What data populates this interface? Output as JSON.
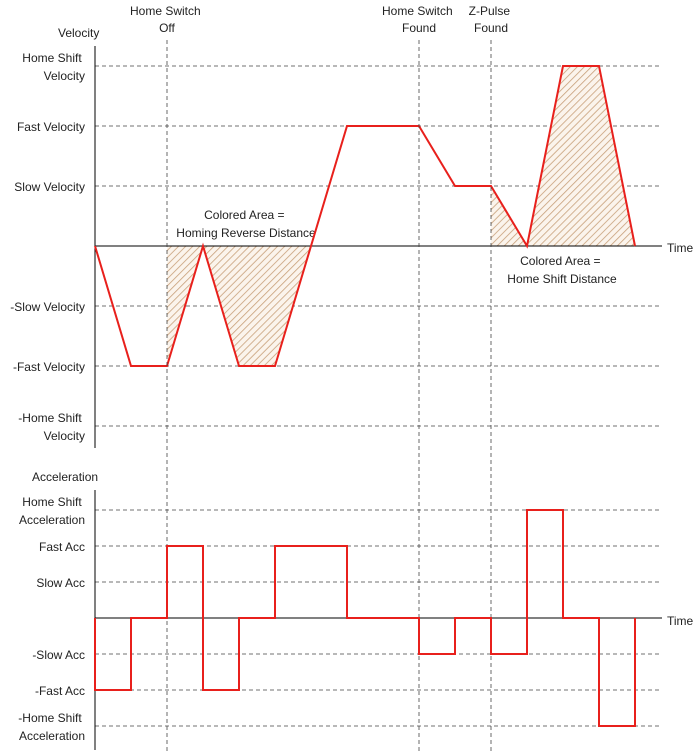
{
  "colors": {
    "curve": "#e8201c",
    "hatch": "#c8a07a",
    "axis": "#000000",
    "grid": "#444444"
  },
  "velocity_chart": {
    "y_axis_title": "Velocity",
    "x_axis_title": "Time",
    "levels": {
      "home_shift_pos": [
        "Home Shift",
        "Velocity"
      ],
      "fast_pos": [
        "Fast Velocity"
      ],
      "slow_pos": [
        "Slow Velocity"
      ],
      "slow_neg": [
        "-Slow Velocity"
      ],
      "fast_neg": [
        "-Fast Velocity"
      ],
      "home_shift_neg": [
        "-Home Shift",
        "Velocity"
      ]
    },
    "level_values": {
      "home_shift_pos": 3,
      "fast_pos": 2,
      "slow_pos": 1,
      "zero": 0,
      "slow_neg": -1,
      "fast_neg": -2,
      "home_shift_neg": -3
    },
    "events": [
      {
        "id": "home_switch_off",
        "label": [
          "Home Switch",
          "Off"
        ],
        "t": 2
      },
      {
        "id": "home_switch_found",
        "label": [
          "Home Switch",
          "Found"
        ],
        "t": 9
      },
      {
        "id": "z_pulse_found",
        "label": [
          "Z-Pulse",
          "Found"
        ],
        "t": 11
      }
    ],
    "profile_t": [
      0,
      1,
      2,
      3,
      4,
      5,
      7,
      9,
      10,
      11,
      12,
      13,
      14,
      15
    ],
    "profile_v": [
      0,
      -2,
      -2,
      0,
      -2,
      -2,
      2,
      2,
      1,
      1,
      0,
      3,
      3,
      0
    ],
    "annotations": [
      {
        "id": "homing_reverse",
        "lines": [
          "Colored Area =",
          "Homing Reverse Distance"
        ]
      },
      {
        "id": "home_shift",
        "lines": [
          "Colored Area =",
          "Home Shift Distance"
        ]
      }
    ]
  },
  "acceleration_chart": {
    "y_axis_title": "Acceleration",
    "x_axis_title": "Time",
    "levels": {
      "home_shift_pos": [
        "Home Shift",
        "Acceleration"
      ],
      "fast_pos": [
        "Fast Acc"
      ],
      "slow_pos": [
        "Slow Acc"
      ],
      "slow_neg": [
        "-Slow Acc"
      ],
      "fast_neg": [
        "-Fast Acc"
      ],
      "home_shift_neg": [
        "-Home Shift",
        "Acceleration"
      ]
    },
    "level_values": {
      "home_shift_pos": 3,
      "fast_pos": 2,
      "slow_pos": 1,
      "zero": 0,
      "slow_neg": -1,
      "fast_neg": -2,
      "home_shift_neg": -3
    },
    "steps": [
      {
        "t0": 0,
        "t1": 1,
        "a": -2
      },
      {
        "t0": 1,
        "t1": 2,
        "a": 0
      },
      {
        "t0": 2,
        "t1": 3,
        "a": 2
      },
      {
        "t0": 3,
        "t1": 4,
        "a": -2
      },
      {
        "t0": 4,
        "t1": 5,
        "a": 0
      },
      {
        "t0": 5,
        "t1": 7,
        "a": 2
      },
      {
        "t0": 7,
        "t1": 9,
        "a": 0
      },
      {
        "t0": 9,
        "t1": 10,
        "a": -1
      },
      {
        "t0": 10,
        "t1": 11,
        "a": 0
      },
      {
        "t0": 11,
        "t1": 12,
        "a": -1
      },
      {
        "t0": 12,
        "t1": 13,
        "a": 3
      },
      {
        "t0": 13,
        "t1": 14,
        "a": 0
      },
      {
        "t0": 14,
        "t1": 15,
        "a": -3
      }
    ]
  }
}
